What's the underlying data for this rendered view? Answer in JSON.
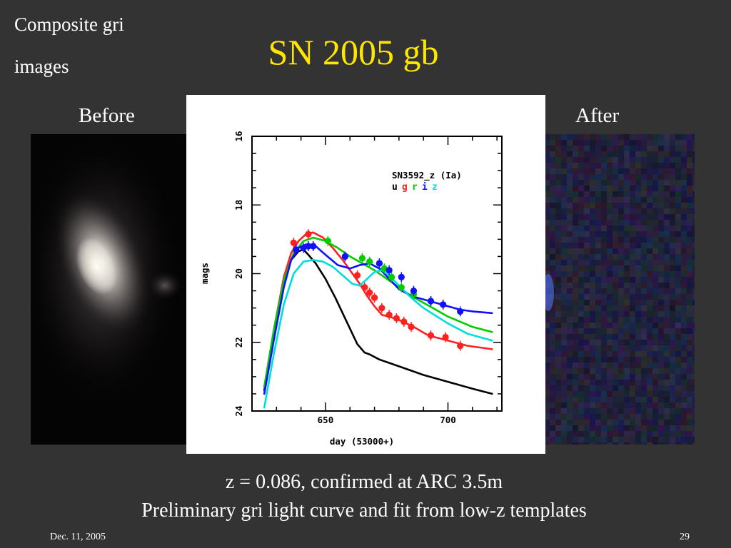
{
  "corner_label": {
    "line1": "Composite gri",
    "line2": "images"
  },
  "title": "SN 2005 gb",
  "before_label": "Before",
  "after_label": "After",
  "caption": {
    "line1": "z = 0.086, confirmed at ARC 3.5m",
    "line2": "Preliminary gri light curve and fit from low-z templates"
  },
  "footer": {
    "date": "Dec. 11, 2005",
    "page": "29"
  },
  "chart_data": {
    "type": "scatter",
    "title": "SN3592_z (Ia)",
    "legend_bands": [
      {
        "name": "u",
        "color": "#000000"
      },
      {
        "name": "g",
        "color": "#ff2020"
      },
      {
        "name": "r",
        "color": "#00cc00"
      },
      {
        "name": "i",
        "color": "#1010ff"
      },
      {
        "name": "z",
        "color": "#00dddd"
      }
    ],
    "xlabel": "day (53000+)",
    "ylabel": "mags",
    "xlim": [
      620,
      722
    ],
    "ylim": [
      24,
      16
    ],
    "x_major_ticks": [
      650,
      700
    ],
    "y_major_ticks": [
      16,
      18,
      20,
      22,
      24
    ],
    "x_tick_labels": [
      "650",
      "700"
    ],
    "y_tick_labels": [
      "16",
      "18",
      "20",
      "22",
      "24"
    ],
    "fit_curves": [
      {
        "band": "u",
        "color": "#000000",
        "x": [
          625,
          629,
          633,
          636,
          639,
          641,
          643,
          646,
          650,
          654,
          659,
          663,
          666,
          668,
          672,
          676,
          680,
          690,
          700,
          710,
          718
        ],
        "y": [
          23.4,
          21.8,
          20.3,
          19.6,
          19.35,
          19.3,
          19.45,
          19.7,
          20.15,
          20.7,
          21.45,
          22.05,
          22.3,
          22.35,
          22.5,
          22.6,
          22.7,
          22.95,
          23.15,
          23.35,
          23.5
        ]
      },
      {
        "band": "g",
        "color": "#ff2020",
        "x": [
          625,
          629,
          633,
          636,
          639,
          642,
          645,
          649,
          653,
          657,
          661,
          664,
          667,
          670,
          673,
          676,
          680,
          686,
          692,
          700,
          708,
          718
        ],
        "y": [
          23.3,
          21.6,
          20.1,
          19.4,
          19.05,
          18.85,
          18.8,
          18.95,
          19.25,
          19.6,
          20.0,
          20.3,
          20.65,
          20.95,
          21.2,
          21.25,
          21.35,
          21.55,
          21.8,
          21.95,
          22.1,
          22.2
        ]
      },
      {
        "band": "r",
        "color": "#00cc00",
        "x": [
          625,
          629,
          633,
          637,
          641,
          645,
          650,
          655,
          660,
          665,
          670,
          675,
          680,
          685,
          690,
          695,
          700,
          705,
          710,
          718
        ],
        "y": [
          23.3,
          21.6,
          20.2,
          19.4,
          19.05,
          18.95,
          19.05,
          19.25,
          19.5,
          19.7,
          19.9,
          20.15,
          20.4,
          20.65,
          20.85,
          21.05,
          21.25,
          21.4,
          21.55,
          21.7
        ]
      },
      {
        "band": "i",
        "color": "#1010ff",
        "x": [
          625,
          629,
          633,
          636,
          639,
          642,
          646,
          650,
          655,
          660,
          664,
          668,
          672,
          676,
          680,
          685,
          690,
          695,
          700,
          705,
          710,
          718
        ],
        "y": [
          23.5,
          21.9,
          20.4,
          19.6,
          19.25,
          19.15,
          19.2,
          19.45,
          19.75,
          19.85,
          19.75,
          19.7,
          19.85,
          20.15,
          20.45,
          20.65,
          20.75,
          20.85,
          20.95,
          21.05,
          21.1,
          21.15
        ]
      },
      {
        "band": "z",
        "color": "#00dddd",
        "x": [
          625,
          629,
          633,
          637,
          641,
          645,
          649,
          653,
          657,
          661,
          664,
          667,
          670,
          673,
          676,
          680,
          685,
          690,
          700,
          708,
          718
        ],
        "y": [
          23.9,
          22.3,
          20.9,
          20.0,
          19.65,
          19.6,
          19.65,
          19.8,
          20.05,
          20.3,
          20.35,
          20.15,
          19.95,
          19.9,
          20.05,
          20.35,
          20.7,
          21.0,
          21.45,
          21.75,
          21.95
        ]
      }
    ],
    "observations": [
      {
        "band": "g",
        "color": "#ff2020",
        "x": [
          637,
          643,
          663,
          666,
          668,
          670,
          673,
          676,
          679,
          682,
          685,
          693,
          699,
          705
        ],
        "y": [
          19.1,
          18.85,
          20.05,
          20.4,
          20.55,
          20.7,
          21.0,
          21.2,
          21.3,
          21.4,
          21.55,
          21.8,
          21.85,
          22.1
        ]
      },
      {
        "band": "r",
        "color": "#00cc00",
        "x": [
          651,
          665,
          668,
          672,
          674,
          677,
          681,
          686,
          693
        ],
        "y": [
          19.05,
          19.55,
          19.65,
          19.7,
          19.85,
          20.1,
          20.4,
          20.6,
          20.8
        ]
      },
      {
        "band": "i",
        "color": "#1010ff",
        "x": [
          638,
          641,
          643,
          645,
          658,
          672,
          676,
          681,
          686,
          693,
          698,
          705
        ],
        "y": [
          19.3,
          19.25,
          19.2,
          19.2,
          19.5,
          19.7,
          19.9,
          20.1,
          20.5,
          20.8,
          20.9,
          21.1
        ]
      }
    ]
  }
}
